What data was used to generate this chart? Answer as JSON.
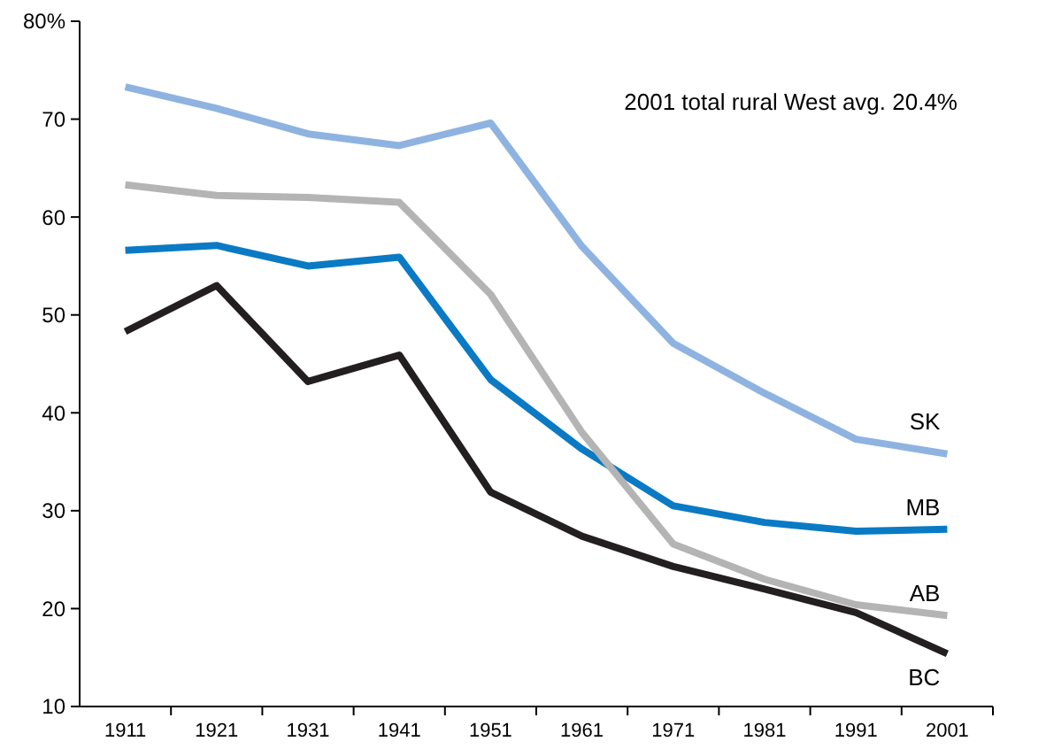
{
  "chart_data": {
    "type": "line",
    "categories": [
      "1911",
      "1921",
      "1931",
      "1941",
      "1951",
      "1961",
      "1971",
      "1981",
      "1991",
      "2001"
    ],
    "series": [
      {
        "name": "SK",
        "color": "#8fb3e0",
        "values": [
          73.3,
          71.1,
          68.5,
          67.3,
          69.6,
          57,
          47.1,
          42,
          37.3,
          35.8
        ]
      },
      {
        "name": "MB",
        "color": "#0a7ac4",
        "values": [
          56.6,
          57.1,
          55,
          55.9,
          43.4,
          36.3,
          30.5,
          28.8,
          27.9,
          28.1
        ]
      },
      {
        "name": "AB",
        "color": "#b4b4b4",
        "values": [
          63.3,
          62.2,
          62,
          61.5,
          52.1,
          38,
          26.6,
          23,
          20.4,
          19.3
        ]
      },
      {
        "name": "BC",
        "color": "#231f20",
        "values": [
          48.3,
          53,
          43.2,
          45.9,
          31.9,
          27.4,
          24.3,
          22,
          19.6,
          15.4
        ]
      }
    ],
    "ylim": [
      10,
      80
    ],
    "yticks": [
      10,
      20,
      30,
      40,
      50,
      60,
      70,
      {
        "value": 80,
        "label": "80%"
      }
    ],
    "annotations": [
      "2001 total rural West avg. 20.4%"
    ],
    "grid": false,
    "legend": false,
    "marker": "none",
    "line_style": "solid"
  }
}
